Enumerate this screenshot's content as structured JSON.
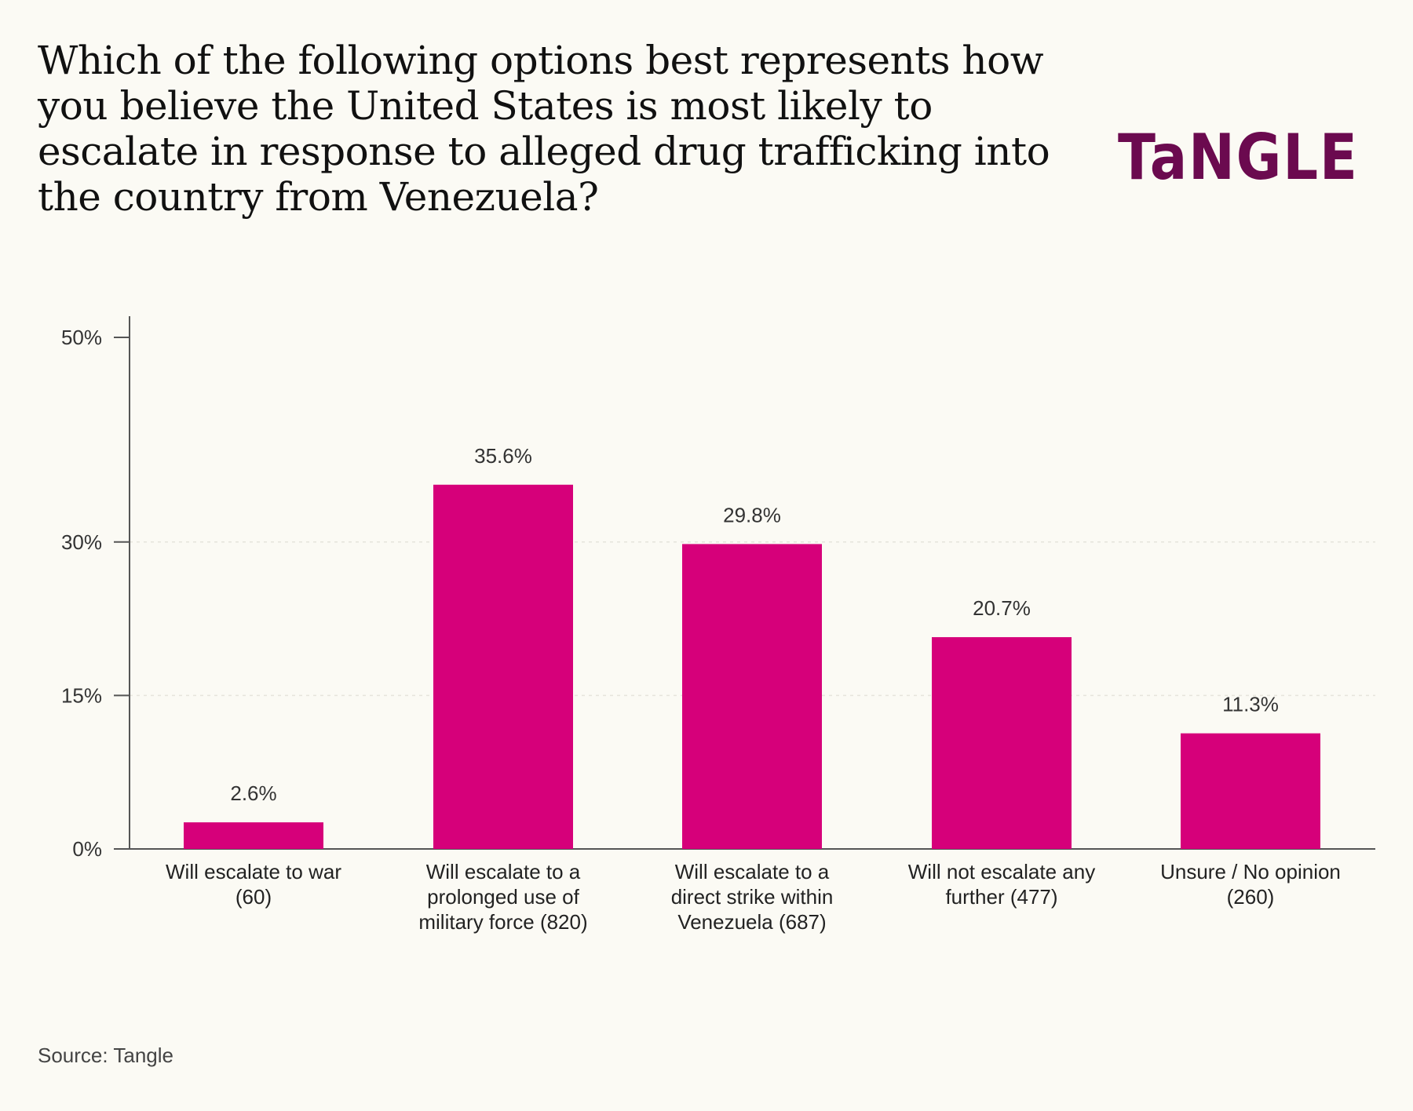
{
  "title": "Which of the following options best represents how you believe the United States is most likely to escalate in response to alleged drug trafficking into the country from Venezuela?",
  "brand": {
    "logo_text": "TaNGLE",
    "color": "#6b0a4f"
  },
  "source": "Source: Tangle",
  "chart_data": {
    "type": "bar",
    "categories": [
      "Will escalate to war (60)",
      "Will escalate to a prolonged use of military force (820)",
      "Will escalate to a direct strike within Venezuela (687)",
      "Will not escalate any further (477)",
      "Unsure / No opinion (260)"
    ],
    "category_lines": [
      [
        "Will escalate to war",
        "(60)"
      ],
      [
        "Will escalate to a",
        "prolonged use of",
        "military force (820)"
      ],
      [
        "Will escalate to a",
        "direct strike within",
        "Venezuela (687)"
      ],
      [
        "Will not escalate any",
        "further (477)"
      ],
      [
        "Unsure / No opinion",
        "(260)"
      ]
    ],
    "values": [
      2.6,
      35.6,
      29.8,
      20.7,
      11.3
    ],
    "value_labels": [
      "2.6%",
      "35.6%",
      "29.8%",
      "20.7%",
      "11.3%"
    ],
    "ylim": [
      0,
      50
    ],
    "yticks": [
      0,
      15,
      30,
      50
    ],
    "ytick_labels": [
      "0%",
      "15%",
      "30%",
      "50%"
    ],
    "gridlines_at": [
      15,
      30
    ],
    "bar_color": "#d6007a",
    "xlabel": "",
    "ylabel": ""
  }
}
